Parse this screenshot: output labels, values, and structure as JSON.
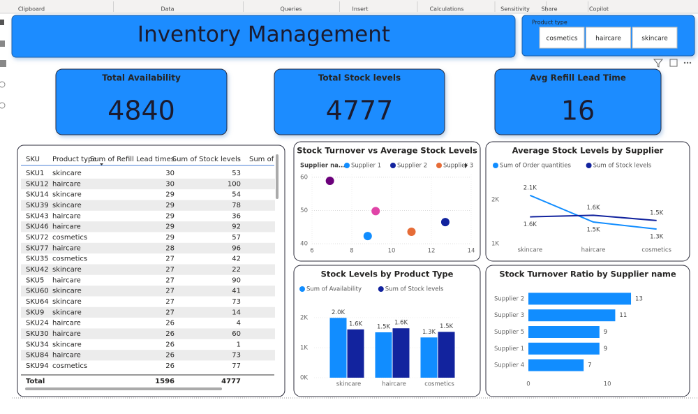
{
  "ribbon": {
    "groups": [
      "Clipboard",
      "Data",
      "Queries",
      "Insert",
      "Calculations",
      "Sensitivity",
      "Share",
      "Copilot"
    ]
  },
  "header": {
    "title": "Inventory Management"
  },
  "slicer": {
    "title": "Product type",
    "options": [
      "cosmetics",
      "haircare",
      "skincare"
    ]
  },
  "cards": [
    {
      "label": "Total Availability",
      "value": 4840
    },
    {
      "label": "Total Stock levels",
      "value": 4777
    },
    {
      "label": "Avg Refill Lead Time",
      "value": 16
    }
  ],
  "table": {
    "columns": [
      "SKU",
      "Product type",
      "Sum of Refill Lead times",
      "Sum of Stock levels",
      "Sum of A"
    ],
    "rows": [
      [
        "SKU1",
        "skincare",
        30,
        53
      ],
      [
        "SKU12",
        "haircare",
        30,
        100
      ],
      [
        "SKU14",
        "skincare",
        29,
        54
      ],
      [
        "SKU39",
        "skincare",
        29,
        78
      ],
      [
        "SKU43",
        "haircare",
        29,
        36
      ],
      [
        "SKU46",
        "haircare",
        29,
        92
      ],
      [
        "SKU72",
        "cosmetics",
        29,
        57
      ],
      [
        "SKU77",
        "haircare",
        28,
        96
      ],
      [
        "SKU35",
        "cosmetics",
        27,
        42
      ],
      [
        "SKU42",
        "skincare",
        27,
        22
      ],
      [
        "SKU5",
        "haircare",
        27,
        90
      ],
      [
        "SKU60",
        "skincare",
        27,
        41
      ],
      [
        "SKU64",
        "skincare",
        27,
        73
      ],
      [
        "SKU9",
        "skincare",
        27,
        14
      ],
      [
        "SKU24",
        "haircare",
        26,
        4
      ],
      [
        "SKU30",
        "haircare",
        26,
        60
      ],
      [
        "SKU34",
        "skincare",
        26,
        1
      ],
      [
        "SKU84",
        "haircare",
        26,
        73
      ],
      [
        "SKU94",
        "cosmetics",
        26,
        77
      ]
    ],
    "total": {
      "label": "Total",
      "values": [
        1596,
        4777
      ]
    }
  },
  "chart_data": [
    {
      "type": "scatter",
      "title": "Stock Turnover vs Average Stock Levels",
      "legend_title": "Supplier na...",
      "xlim": [
        6,
        14
      ],
      "xticks": [
        6,
        8,
        10,
        12,
        14
      ],
      "ylim": [
        39.4,
        60.8
      ],
      "yticks": [
        40,
        50,
        60
      ],
      "grid": true,
      "series": [
        {
          "name": "Supplier 1",
          "color": "#118dff",
          "x": [
            8.8
          ],
          "values": [
            42.3
          ]
        },
        {
          "name": "Supplier 2",
          "color": "#12239e",
          "x": [
            12.7
          ],
          "values": [
            46.5
          ]
        },
        {
          "name": "Supplier 3",
          "color": "#e66c37",
          "x": [
            11.0
          ],
          "values": [
            43.6
          ]
        },
        {
          "color": "#6b007b",
          "x": [
            6.9
          ],
          "values": [
            58.9
          ]
        },
        {
          "color": "#e044a7",
          "x": [
            9.2
          ],
          "values": [
            49.8
          ]
        }
      ]
    },
    {
      "type": "line",
      "title": "Average Stock Levels by Supplier",
      "categories": [
        "skincare",
        "haircare",
        "cosmetics"
      ],
      "ylim": [
        1000,
        2330
      ],
      "yticks": [
        {
          "value": 1000,
          "label": "1K"
        },
        {
          "value": 2000,
          "label": "2K"
        }
      ],
      "series": [
        {
          "name": "Sum of Order quantities",
          "color": "#118dff",
          "values": [
            2095,
            1490,
            1330
          ],
          "value_labels": [
            "2.1K",
            "1.5K",
            "1.3K"
          ]
        },
        {
          "name": "Sum of Stock levels",
          "color": "#12239e",
          "values": [
            1608,
            1644,
            1525
          ],
          "value_labels": [
            "1.6K",
            "1.6K",
            "1.5K"
          ]
        }
      ]
    },
    {
      "type": "bar",
      "title": "Stock Levels by Product Type",
      "categories": [
        "skincare",
        "haircare",
        "cosmetics"
      ],
      "ylim": [
        0,
        2300
      ],
      "yticks": [
        {
          "value": 0,
          "label": "0K"
        },
        {
          "value": 1000,
          "label": "1K"
        },
        {
          "value": 2000,
          "label": "2K"
        }
      ],
      "series": [
        {
          "name": "Sum of Availability",
          "color": "#118dff",
          "values": [
            1990,
            1510,
            1340
          ],
          "value_labels": [
            "2.0K",
            "1.5K",
            "1.3K"
          ]
        },
        {
          "name": "Sum of Stock levels",
          "color": "#12239e",
          "values": [
            1608,
            1644,
            1525
          ],
          "value_labels": [
            "1.6K",
            "1.6K",
            "1.5K"
          ]
        }
      ]
    },
    {
      "type": "barh",
      "title": "Stock Turnover Ratio by Supplier name",
      "categories": [
        "Supplier 2",
        "Supplier 3",
        "Supplier 5",
        "Supplier 1",
        "Supplier 4"
      ],
      "values": [
        13,
        11,
        9,
        9,
        7
      ],
      "color": "#118dff",
      "xlim": [
        0,
        14.5
      ],
      "xticks": [
        0,
        10
      ]
    }
  ]
}
